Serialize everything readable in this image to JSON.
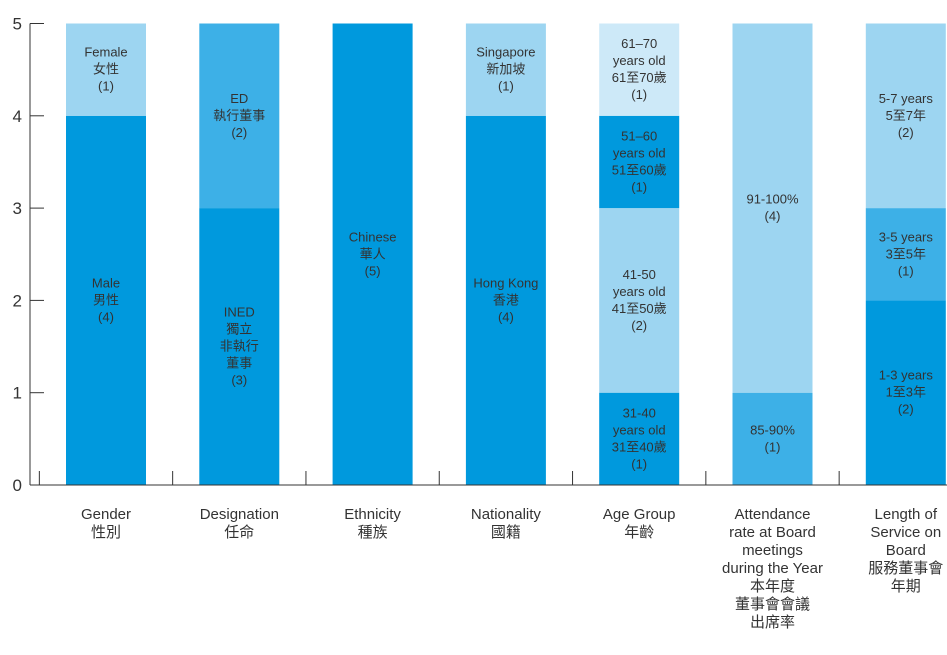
{
  "chart_data": {
    "type": "bar",
    "stacked": true,
    "ylim": [
      0,
      5
    ],
    "yticks": [
      "0",
      "1",
      "2",
      "3",
      "4",
      "5"
    ],
    "grid": false,
    "legend": "none",
    "categories": [
      {
        "label": [
          "Gender",
          "性別"
        ],
        "segments": [
          {
            "value": 4,
            "label": [
              "Male",
              "男性",
              "(4)"
            ],
            "color": "#0099dd"
          },
          {
            "value": 1,
            "label": [
              "Female",
              "女性",
              "(1)"
            ],
            "color": "#9dd5f1"
          }
        ]
      },
      {
        "label": [
          "Designation",
          "任命"
        ],
        "segments": [
          {
            "value": 3,
            "label": [
              "INED",
              "獨立",
              "非執行",
              "董事",
              "(3)"
            ],
            "color": "#0099dd"
          },
          {
            "value": 2,
            "label": [
              "ED",
              "執行董事",
              "(2)"
            ],
            "color": "#3db0e7"
          }
        ]
      },
      {
        "label": [
          "Ethnicity",
          "種族"
        ],
        "segments": [
          {
            "value": 5,
            "label": [
              "Chinese",
              "華人",
              "(5)"
            ],
            "color": "#0099dd"
          }
        ]
      },
      {
        "label": [
          "Nationality",
          "國籍"
        ],
        "segments": [
          {
            "value": 4,
            "label": [
              "Hong Kong",
              "香港",
              "(4)"
            ],
            "color": "#0099dd"
          },
          {
            "value": 1,
            "label": [
              "Singapore",
              "新加坡",
              "(1)"
            ],
            "color": "#9dd5f1"
          }
        ]
      },
      {
        "label": [
          "Age Group",
          "年齡"
        ],
        "segments": [
          {
            "value": 1,
            "label": [
              "31-40",
              "years old",
              "31至40歲",
              "(1)"
            ],
            "color": "#0099dd"
          },
          {
            "value": 2,
            "label": [
              "41-50",
              "years old",
              "41至50歲",
              "(2)"
            ],
            "color": "#9dd5f1"
          },
          {
            "value": 1,
            "label": [
              "51–60",
              "years old",
              "51至60歲",
              "(1)"
            ],
            "color": "#0099dd"
          },
          {
            "value": 1,
            "label": [
              "61–70",
              "years old",
              "61至70歲",
              "(1)"
            ],
            "color": "#cde9f8"
          }
        ]
      },
      {
        "label": [
          "Attendance",
          "rate at Board",
          "meetings",
          "during the Year",
          "本年度",
          "董事會會議",
          "出席率"
        ],
        "segments": [
          {
            "value": 1,
            "label": [
              "85-90%",
              "(1)"
            ],
            "color": "#3db0e7"
          },
          {
            "value": 4,
            "label": [
              "91-100%",
              "(4)"
            ],
            "color": "#9dd5f1"
          }
        ]
      },
      {
        "label": [
          "Length of",
          "Service on",
          "Board",
          "服務董事會",
          "年期"
        ],
        "segments": [
          {
            "value": 2,
            "label": [
              "1-3 years",
              "1至3年",
              "(2)"
            ],
            "color": "#0099dd"
          },
          {
            "value": 1,
            "label": [
              "3-5 years",
              "3至5年",
              "(1)"
            ],
            "color": "#3db0e7"
          },
          {
            "value": 2,
            "label": [
              "5-7 years",
              "5至7年",
              "(2)"
            ],
            "color": "#9dd5f1"
          }
        ]
      }
    ]
  }
}
